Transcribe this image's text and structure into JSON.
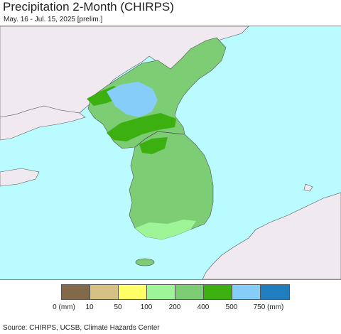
{
  "title": "Precipitation 2-Month (CHIRPS)",
  "subtitle": "May. 16 - Jul. 15, 2025 [prelim.]",
  "colors": {
    "ocean": "#b9fbff",
    "foreign_land": "#f0eaf0",
    "border": "#888888"
  },
  "legend": {
    "swatches": [
      {
        "color": "#82694a"
      },
      {
        "color": "#d6c083"
      },
      {
        "color": "#ffff66"
      },
      {
        "color": "#9ef598"
      },
      {
        "color": "#7ccd74"
      },
      {
        "color": "#3bb010"
      },
      {
        "color": "#87cdfa"
      },
      {
        "color": "#1f7dc0"
      }
    ],
    "ticks": [
      "0 (mm)",
      "10",
      "50",
      "100",
      "200",
      "400",
      "500",
      "750 (mm)"
    ]
  },
  "source": "Source: CHIRPS, UCSB, Climate Hazards Center"
}
